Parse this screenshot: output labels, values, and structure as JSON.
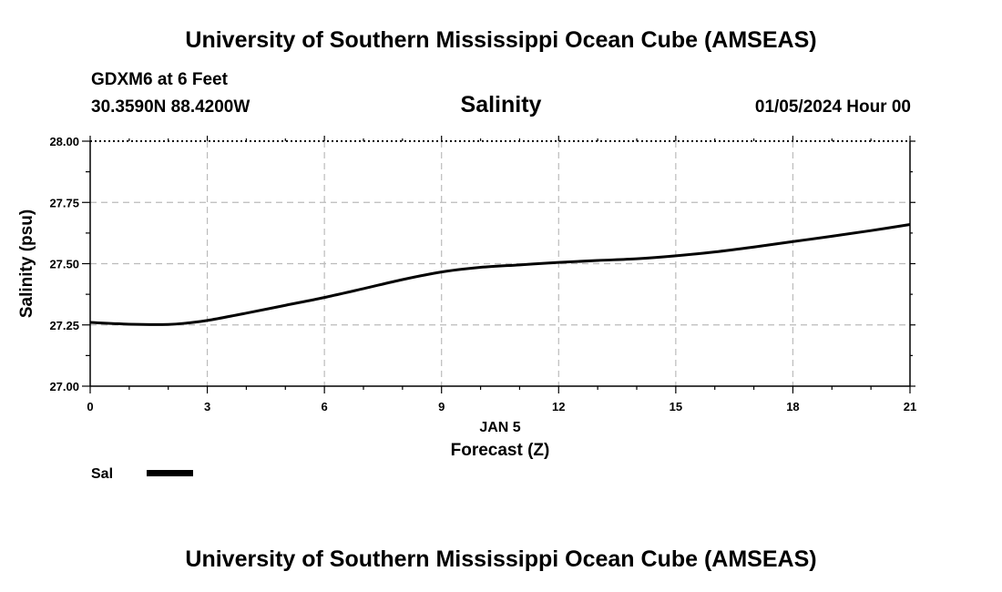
{
  "page": {
    "top_title": "University of Southern Mississippi Ocean Cube (AMSEAS)",
    "bottom_title": "University of Southern Mississippi Ocean Cube (AMSEAS)",
    "station": "GDXM6 at 6 Feet",
    "coords": "30.3590N  88.4200W",
    "datetime": "01/05/2024 Hour 00"
  },
  "chart_data": {
    "type": "line",
    "title": "Salinity",
    "xlabel": "Forecast (Z)",
    "xlabel_date": "JAN 5",
    "ylabel": "Salinity (psu)",
    "xlim": [
      0,
      21
    ],
    "ylim": [
      27.0,
      28.0
    ],
    "xticks": [
      0,
      3,
      6,
      9,
      12,
      15,
      18,
      21
    ],
    "yticks": [
      27.0,
      27.25,
      27.5,
      27.75,
      28.0
    ],
    "ytick_labels": [
      "27.00",
      "27.25",
      "27.50",
      "27.75",
      "28.00"
    ],
    "grid": true,
    "legend": "bottom-left",
    "series": [
      {
        "name": "Sal",
        "color": "#000000",
        "x": [
          0,
          1,
          2,
          2.5,
          3,
          4,
          5,
          6,
          7,
          8,
          9,
          10,
          11,
          12,
          13,
          14,
          15,
          16,
          17,
          18,
          19,
          20,
          21
        ],
        "values": [
          27.26,
          27.253,
          27.252,
          27.258,
          27.268,
          27.298,
          27.33,
          27.362,
          27.398,
          27.435,
          27.466,
          27.485,
          27.495,
          27.505,
          27.513,
          27.52,
          27.532,
          27.548,
          27.568,
          27.59,
          27.612,
          27.635,
          27.66
        ]
      }
    ]
  }
}
